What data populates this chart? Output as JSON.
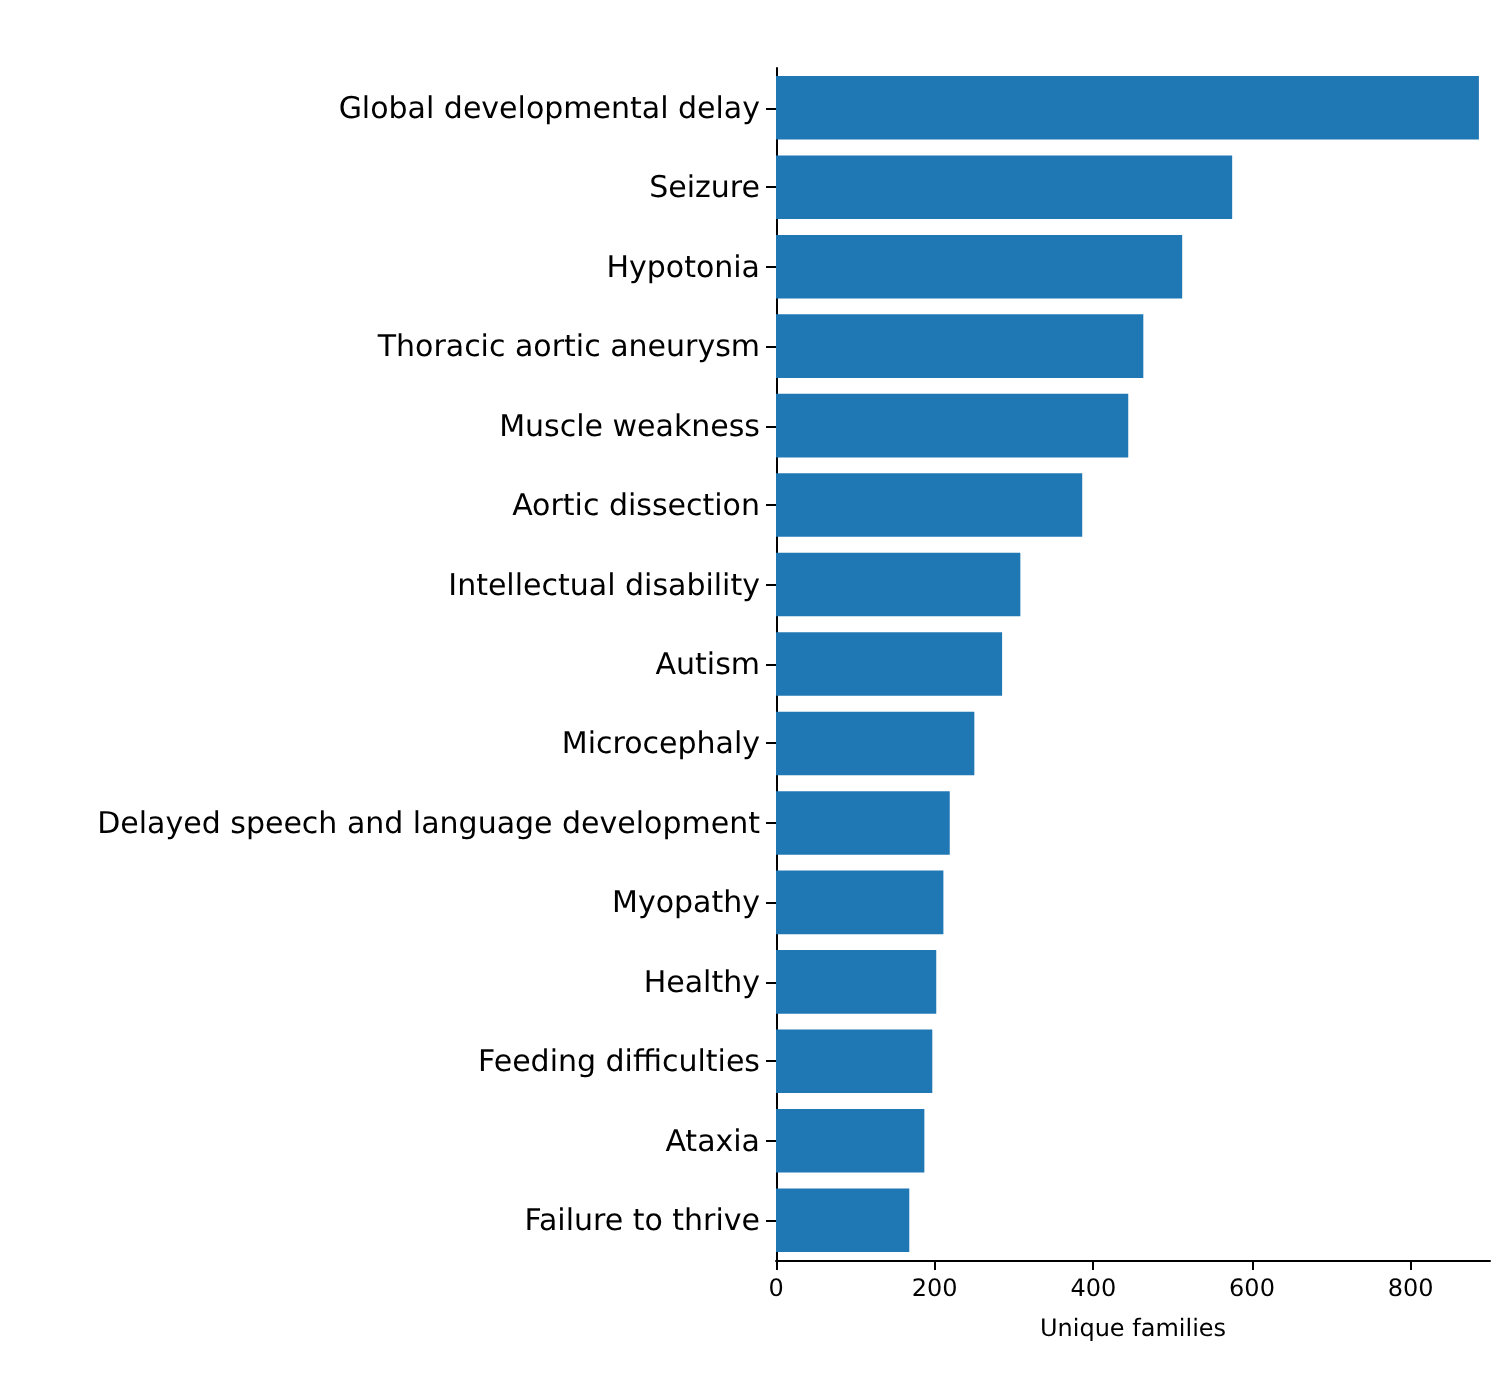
{
  "chart_data": {
    "type": "bar",
    "orientation": "horizontal",
    "xlabel": "Unique families",
    "categories": [
      "Global developmental delay",
      "Seizure",
      "Hypotonia",
      "Thoracic aortic aneurysm",
      "Muscle weakness",
      "Aortic dissection",
      "Intellectual disability",
      "Autism",
      "Microcephaly",
      "Delayed speech and language development",
      "Myopathy",
      "Healthy",
      "Feeding difficulties",
      "Ataxia",
      "Failure to thrive"
    ],
    "values": [
      886,
      575,
      512,
      463,
      444,
      386,
      308,
      285,
      250,
      219,
      211,
      202,
      197,
      187,
      168
    ],
    "color": "#1f77b4",
    "xlim": [
      0,
      900
    ],
    "xticks": [
      0,
      200,
      400,
      600,
      800
    ]
  }
}
